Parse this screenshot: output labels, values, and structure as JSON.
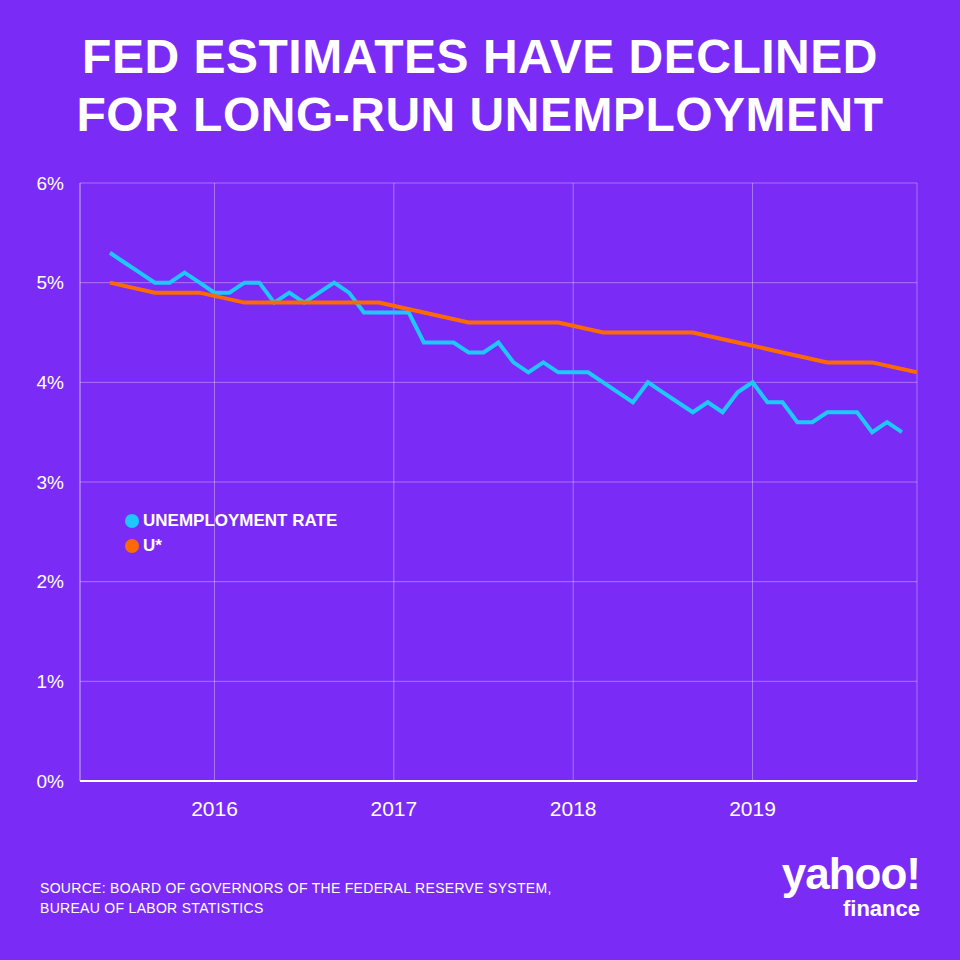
{
  "chart_data": {
    "type": "line",
    "title": "FED ESTIMATES HAVE DECLINED\nFOR LONG-RUN UNEMPLOYMENT",
    "source": "SOURCE: BOARD OF GOVERNORS OF THE FEDERAL RESERVE SYSTEM,\nBUREAU OF LABOR STATISTICS",
    "logo": {
      "top": "yahoo!",
      "bottom": "finance"
    },
    "series": [
      {
        "name": "UNEMPLOYMENT RATE",
        "color": "#1ec8ff",
        "x": [
          2015.417,
          2015.5,
          2015.583,
          2015.667,
          2015.75,
          2015.833,
          2015.917,
          2016.0,
          2016.083,
          2016.167,
          2016.25,
          2016.333,
          2016.417,
          2016.5,
          2016.583,
          2016.667,
          2016.75,
          2016.833,
          2016.917,
          2017.0,
          2017.083,
          2017.167,
          2017.25,
          2017.333,
          2017.417,
          2017.5,
          2017.583,
          2017.667,
          2017.75,
          2017.833,
          2017.917,
          2018.0,
          2018.083,
          2018.167,
          2018.25,
          2018.333,
          2018.417,
          2018.5,
          2018.583,
          2018.667,
          2018.75,
          2018.833,
          2018.917,
          2019.0,
          2019.083,
          2019.167,
          2019.25,
          2019.333,
          2019.417,
          2019.5,
          2019.583,
          2019.667,
          2019.75,
          2019.833
        ],
        "values": [
          5.3,
          5.2,
          5.1,
          5.0,
          5.0,
          5.1,
          5.0,
          4.9,
          4.9,
          5.0,
          5.0,
          4.8,
          4.9,
          4.8,
          4.9,
          5.0,
          4.9,
          4.7,
          4.7,
          4.7,
          4.7,
          4.4,
          4.4,
          4.4,
          4.3,
          4.3,
          4.4,
          4.2,
          4.1,
          4.2,
          4.1,
          4.1,
          4.1,
          4.0,
          3.9,
          3.8,
          4.0,
          3.9,
          3.8,
          3.7,
          3.8,
          3.7,
          3.9,
          4.0,
          3.8,
          3.8,
          3.6,
          3.6,
          3.7,
          3.7,
          3.7,
          3.5,
          3.6,
          3.5
        ]
      },
      {
        "name": "U*",
        "color": "#ff6a00",
        "x": [
          2015.417,
          2015.667,
          2015.917,
          2016.167,
          2016.417,
          2016.667,
          2016.917,
          2017.167,
          2017.417,
          2017.667,
          2017.917,
          2018.167,
          2018.417,
          2018.667,
          2018.917,
          2019.167,
          2019.417,
          2019.667,
          2019.917
        ],
        "values": [
          5.0,
          4.9,
          4.9,
          4.8,
          4.8,
          4.8,
          4.8,
          4.7,
          4.6,
          4.6,
          4.6,
          4.5,
          4.5,
          4.5,
          4.4,
          4.3,
          4.2,
          4.2,
          4.1
        ]
      }
    ],
    "xlim": [
      2015.25,
      2019.917
    ],
    "xticks": [
      2016,
      2017,
      2018,
      2019
    ],
    "ylim": [
      0,
      6
    ],
    "yticks": [
      {
        "value": 0,
        "label": "0%"
      },
      {
        "value": 1,
        "label": "1%"
      },
      {
        "value": 2,
        "label": "2%"
      },
      {
        "value": 3,
        "label": "3%"
      },
      {
        "value": 4,
        "label": "4%"
      },
      {
        "value": 5,
        "label": "5%"
      },
      {
        "value": 6,
        "label": "6%"
      }
    ],
    "grid": true,
    "legend": "left"
  }
}
